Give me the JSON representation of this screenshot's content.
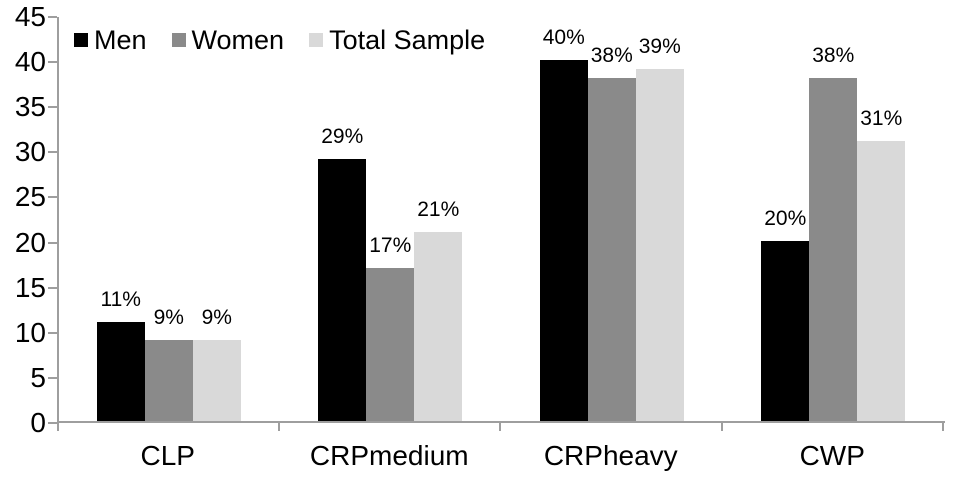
{
  "chart_data": {
    "type": "bar",
    "title": "",
    "xlabel": "",
    "ylabel": "",
    "categories": [
      "CLP",
      "CRPmedium",
      "CRPheavy",
      "CWP"
    ],
    "series": [
      {
        "name": "Men",
        "color": "#000000",
        "values": [
          11,
          29,
          40,
          20
        ]
      },
      {
        "name": "Women",
        "color": "#8a8a8a",
        "values": [
          9,
          17,
          38,
          38
        ]
      },
      {
        "name": "Total Sample",
        "color": "#d9d9d9",
        "values": [
          9,
          21,
          39,
          31
        ]
      }
    ],
    "data_labels_shown": true,
    "data_label_suffix": "%",
    "ylim": [
      0,
      45
    ],
    "yticks": [
      0,
      5,
      10,
      15,
      20,
      25,
      30,
      35,
      40,
      45
    ],
    "grid": false,
    "legend_position": "top-left",
    "axis_color": "#9e9e9e",
    "text_color": "#000000",
    "background_color": "#ffffff"
  }
}
